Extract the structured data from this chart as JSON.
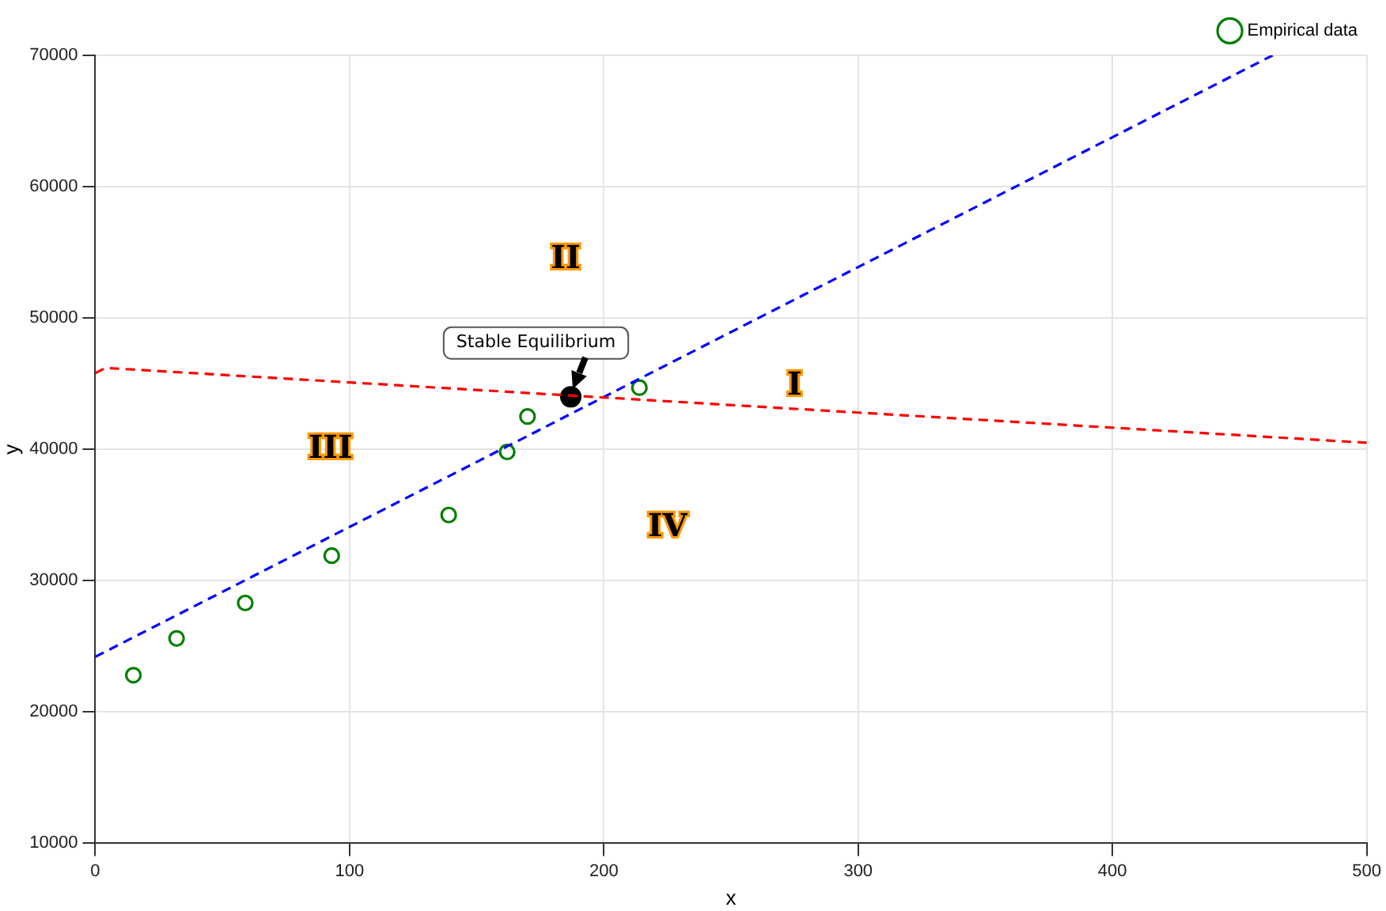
{
  "chart_data": {
    "type": "scatter",
    "xlabel": "x",
    "ylabel": "y",
    "xlim": [
      0,
      500
    ],
    "ylim": [
      10000,
      70000
    ],
    "xticks": [
      0,
      100,
      200,
      300,
      400,
      500
    ],
    "yticks": [
      10000,
      20000,
      30000,
      40000,
      50000,
      60000,
      70000
    ],
    "grid": true,
    "legend": "top right",
    "series": [
      {
        "type": "line",
        "color": "#ff0000",
        "line_style": "dashed",
        "marker": "none",
        "x": [
          0,
          4,
          500
        ],
        "values": [
          45800,
          46200,
          40500
        ]
      },
      {
        "type": "line",
        "color": "#0000ff",
        "line_style": "dashed",
        "marker": "none",
        "x": [
          0,
          463
        ],
        "values": [
          24200,
          70000
        ]
      },
      {
        "name": "Empirical data",
        "color": "#008000",
        "marker": "circle",
        "x": [
          15,
          32,
          59,
          93,
          139,
          162,
          170,
          214
        ],
        "values": [
          22800,
          25600,
          28300,
          31900,
          35000,
          39800,
          42500,
          44700
        ]
      },
      {
        "color": "#000000",
        "marker": "circle",
        "x": [
          187
        ],
        "values": [
          44000
        ]
      }
    ],
    "annotations": [
      {
        "text": "Stable Equilibrium",
        "x": 187,
        "y": 44000
      },
      "I",
      "II",
      "III",
      "IV"
    ]
  }
}
